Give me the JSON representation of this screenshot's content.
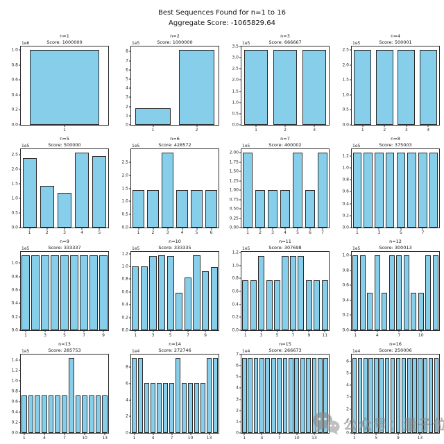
{
  "figure": {
    "title_line1": "Best Sequences Found for n=1 to 16",
    "title_line2": "Aggregate Score: -1065829.64"
  },
  "colors": {
    "bar_fill": "#87CEEB",
    "bar_edge": "#2b2b2b",
    "background": "#ffffff",
    "watermark": "#8a8a8a"
  },
  "watermark": {
    "icon": "wechat-chat-bubbles-icon",
    "text": "公众号：量子位"
  },
  "chart_data": [
    {
      "type": "bar",
      "title": "n=1",
      "subtitle": "Score: 1000000",
      "offset": "1e6",
      "exp": 6,
      "ymax": 1.05,
      "ylim": [
        0,
        1.05
      ],
      "xlabel": "",
      "ylabel": "",
      "grid": false,
      "legend": false,
      "yticks": [
        "0.0",
        "0.2",
        "0.4",
        "0.6",
        "0.8",
        "1.0"
      ],
      "xticks": [
        1
      ],
      "categories": [
        1
      ],
      "values": [
        1000000
      ]
    },
    {
      "type": "bar",
      "title": "n=2",
      "subtitle": "Score: 1000000",
      "offset": "1e5",
      "exp": 5,
      "ymax": 8.56,
      "ylim": [
        0,
        8.56
      ],
      "xlabel": "",
      "ylabel": "",
      "grid": false,
      "legend": false,
      "yticks": [
        "0",
        "1",
        "2",
        "3",
        "4",
        "5",
        "6",
        "7",
        "8"
      ],
      "xticks": [
        1,
        2
      ],
      "categories": [
        1,
        2
      ],
      "values": [
        185000,
        815000
      ]
    },
    {
      "type": "bar",
      "title": "n=3",
      "subtitle": "Score: 666667",
      "offset": "1e5",
      "exp": 5,
      "ymax": 3.5,
      "ylim": [
        0,
        3.5
      ],
      "xlabel": "",
      "ylabel": "",
      "grid": false,
      "legend": false,
      "yticks": [
        "0.0",
        "0.5",
        "1.0",
        "1.5",
        "2.0",
        "2.5",
        "3.0",
        "3.5"
      ],
      "xticks": [
        1,
        2,
        3
      ],
      "categories": [
        1,
        2,
        3
      ],
      "values": [
        333333,
        333333,
        333333
      ]
    },
    {
      "type": "bar",
      "title": "n=4",
      "subtitle": "Score: 500001",
      "offset": "1e5",
      "exp": 5,
      "ymax": 2.625,
      "ylim": [
        0,
        2.625
      ],
      "xlabel": "",
      "ylabel": "",
      "grid": false,
      "legend": false,
      "yticks": [
        "0.0",
        "0.5",
        "1.0",
        "1.5",
        "2.0",
        "2.5"
      ],
      "xticks": [
        1,
        2,
        3,
        4
      ],
      "categories": [
        1,
        2,
        3,
        4
      ],
      "values": [
        250000,
        250000,
        250000,
        250000
      ]
    },
    {
      "type": "bar",
      "title": "n=5",
      "subtitle": "Score: 500000",
      "offset": "1e5",
      "exp": 5,
      "ymax": 2.68,
      "ylim": [
        0,
        2.68
      ],
      "xlabel": "",
      "ylabel": "",
      "grid": false,
      "legend": false,
      "yticks": [
        "0.0",
        "0.5",
        "1.0",
        "1.5",
        "2.0",
        "2.5"
      ],
      "xticks": [
        1,
        2,
        3,
        4,
        5
      ],
      "categories": [
        1,
        2,
        3,
        4,
        5
      ],
      "values": [
        237000,
        142000,
        119000,
        255000,
        245000
      ]
    },
    {
      "type": "bar",
      "title": "n=6",
      "subtitle": "Score: 428572",
      "offset": "1e5",
      "exp": 5,
      "ymax": 3.0,
      "ylim": [
        0,
        3.0
      ],
      "xlabel": "",
      "ylabel": "",
      "grid": false,
      "legend": false,
      "yticks": [
        "0.0",
        "0.5",
        "1.0",
        "1.5",
        "2.0",
        "2.5"
      ],
      "xticks": [
        1,
        2,
        3,
        4,
        5,
        6
      ],
      "categories": [
        1,
        2,
        3,
        4,
        5,
        6
      ],
      "values": [
        142857,
        142857,
        285714,
        142857,
        142857,
        142857
      ]
    },
    {
      "type": "bar",
      "title": "n=7",
      "subtitle": "Score: 400002",
      "offset": "1e5",
      "exp": 5,
      "ymax": 2.1,
      "ylim": [
        0,
        2.1
      ],
      "xlabel": "",
      "ylabel": "",
      "grid": false,
      "legend": false,
      "yticks": [
        "0.00",
        "0.25",
        "0.50",
        "0.75",
        "1.00",
        "1.25",
        "1.50",
        "1.75",
        "2.00"
      ],
      "xticks": [
        1,
        2,
        3,
        4,
        5,
        6,
        7
      ],
      "categories": [
        1,
        2,
        3,
        4,
        5,
        6,
        7
      ],
      "values": [
        200000,
        100000,
        100000,
        100000,
        200000,
        100000,
        200000
      ]
    },
    {
      "type": "bar",
      "title": "n=8",
      "subtitle": "Score: 375003",
      "offset": "1e5",
      "exp": 5,
      "ymax": 1.3125,
      "ylim": [
        0,
        1.3125
      ],
      "xlabel": "",
      "ylabel": "",
      "grid": false,
      "legend": false,
      "yticks": [
        "0.0",
        "0.2",
        "0.4",
        "0.6",
        "0.8",
        "1.0",
        "1.2"
      ],
      "xticks": [
        1,
        3,
        5,
        7
      ],
      "categories": [
        1,
        2,
        3,
        4,
        5,
        6,
        7,
        8
      ],
      "values": [
        125000,
        125000,
        125000,
        125000,
        125000,
        125000,
        125000,
        125000
      ]
    },
    {
      "type": "bar",
      "title": "n=9",
      "subtitle": "Score: 333337",
      "offset": "1e5",
      "exp": 5,
      "ymax": 1.1667,
      "ylim": [
        0,
        1.1667
      ],
      "xlabel": "",
      "ylabel": "",
      "grid": false,
      "legend": false,
      "yticks": [
        "0.0",
        "0.2",
        "0.4",
        "0.6",
        "0.8",
        "1.0"
      ],
      "xticks": [
        1,
        3,
        5,
        7,
        9
      ],
      "categories": [
        1,
        2,
        3,
        4,
        5,
        6,
        7,
        8,
        9
      ],
      "values": [
        111111,
        111111,
        111111,
        111111,
        111111,
        111111,
        111111,
        111111,
        111111
      ]
    },
    {
      "type": "bar",
      "title": "n=10",
      "subtitle": "Score: 333335",
      "offset": "1e5",
      "exp": 5,
      "ymax": 1.229,
      "ylim": [
        0,
        1.229
      ],
      "xlabel": "",
      "ylabel": "",
      "grid": false,
      "legend": false,
      "yticks": [
        "0.0",
        "0.2",
        "0.4",
        "0.6",
        "0.8",
        "1.0",
        "1.2"
      ],
      "xticks": [
        1,
        3,
        5,
        7,
        9
      ],
      "categories": [
        1,
        2,
        3,
        4,
        5,
        6,
        7,
        8,
        9,
        10
      ],
      "values": [
        100000,
        100000,
        116000,
        117000,
        116000,
        59000,
        83000,
        117000,
        93000,
        99000
      ]
    },
    {
      "type": "bar",
      "title": "n=11",
      "subtitle": "Score: 307698",
      "offset": "1e5",
      "exp": 5,
      "ymax": 1.2115,
      "ylim": [
        0,
        1.2115
      ],
      "xlabel": "",
      "ylabel": "",
      "grid": false,
      "legend": false,
      "yticks": [
        "0.0",
        "0.2",
        "0.4",
        "0.6",
        "0.8",
        "1.0",
        "1.2"
      ],
      "xticks": [
        1,
        3,
        5,
        7,
        9,
        11
      ],
      "categories": [
        1,
        2,
        3,
        4,
        5,
        6,
        7,
        8,
        9,
        10,
        11
      ],
      "values": [
        77000,
        77000,
        115000,
        77000,
        77000,
        115000,
        115000,
        115000,
        77000,
        77000,
        77000
      ]
    },
    {
      "type": "bar",
      "title": "n=12",
      "subtitle": "Score: 300013",
      "offset": "1e5",
      "exp": 5,
      "ymax": 1.05,
      "ylim": [
        0,
        1.05
      ],
      "xlabel": "",
      "ylabel": "",
      "grid": false,
      "legend": false,
      "yticks": [
        "0.0",
        "0.2",
        "0.4",
        "0.6",
        "0.8",
        "1.0"
      ],
      "xticks": [
        1,
        4,
        7,
        10
      ],
      "categories": [
        1,
        2,
        3,
        4,
        5,
        6,
        7,
        8,
        9,
        10,
        11,
        12
      ],
      "values": [
        100000,
        100000,
        50000,
        100000,
        50000,
        100000,
        100000,
        100000,
        50000,
        50000,
        100000,
        100000
      ]
    },
    {
      "type": "bar",
      "title": "n=13",
      "subtitle": "Score: 285753",
      "offset": "1e5",
      "exp": 5,
      "ymax": 1.5,
      "ylim": [
        0,
        1.5
      ],
      "xlabel": "",
      "ylabel": "",
      "grid": false,
      "legend": false,
      "yticks": [
        "0.0",
        "0.2",
        "0.4",
        "0.6",
        "0.8",
        "1.0",
        "1.2",
        "1.4"
      ],
      "xticks": [
        1,
        4,
        7,
        10,
        13
      ],
      "categories": [
        1,
        2,
        3,
        4,
        5,
        6,
        7,
        8,
        9,
        10,
        11,
        12,
        13
      ],
      "values": [
        71429,
        71429,
        71429,
        71429,
        71429,
        71429,
        71429,
        142857,
        71429,
        71429,
        71429,
        71429,
        71429
      ]
    },
    {
      "type": "bar",
      "title": "n=14",
      "subtitle": "Score: 272746",
      "offset": "1e4",
      "exp": 4,
      "ymax": 9.55,
      "ylim": [
        0,
        9.55
      ],
      "xlabel": "",
      "ylabel": "",
      "grid": false,
      "legend": false,
      "yticks": [
        "0",
        "2",
        "4",
        "6",
        "8"
      ],
      "xticks": [
        1,
        4,
        7,
        10,
        13
      ],
      "categories": [
        1,
        2,
        3,
        4,
        5,
        6,
        7,
        8,
        9,
        10,
        11,
        12,
        13,
        14
      ],
      "values": [
        91000,
        91000,
        61000,
        61000,
        61000,
        61000,
        61000,
        91000,
        61000,
        61000,
        61000,
        61000,
        91000,
        91000
      ]
    },
    {
      "type": "bar",
      "title": "n=15",
      "subtitle": "Score: 266673",
      "offset": "1e4",
      "exp": 4,
      "ymax": 7.0,
      "ylim": [
        0,
        7.0
      ],
      "xlabel": "",
      "ylabel": "",
      "grid": false,
      "legend": false,
      "yticks": [
        "0",
        "1",
        "2",
        "3",
        "4",
        "5",
        "6",
        "7"
      ],
      "xticks": [
        1,
        4,
        7,
        10,
        13
      ],
      "categories": [
        1,
        2,
        3,
        4,
        5,
        6,
        7,
        8,
        9,
        10,
        11,
        12,
        13,
        14,
        15
      ],
      "values": [
        66667,
        66667,
        66667,
        66667,
        66667,
        66667,
        66667,
        66667,
        66667,
        66667,
        66667,
        66667,
        66667,
        66667,
        66667
      ]
    },
    {
      "type": "bar",
      "title": "n=16",
      "subtitle": "Score: 250006",
      "offset": "1e4",
      "exp": 4,
      "ymax": 6.5625,
      "ylim": [
        0,
        6.5625
      ],
      "xlabel": "",
      "ylabel": "",
      "grid": false,
      "legend": false,
      "yticks": [
        "0",
        "1",
        "2",
        "3",
        "4",
        "5",
        "6"
      ],
      "xticks": [
        1,
        5,
        9,
        13
      ],
      "categories": [
        1,
        2,
        3,
        4,
        5,
        6,
        7,
        8,
        9,
        10,
        11,
        12,
        13,
        14,
        15,
        16
      ],
      "values": [
        62500,
        62500,
        62500,
        62500,
        62500,
        62500,
        62500,
        62500,
        62500,
        62500,
        62500,
        62500,
        62500,
        62500,
        62500,
        62500
      ]
    }
  ]
}
